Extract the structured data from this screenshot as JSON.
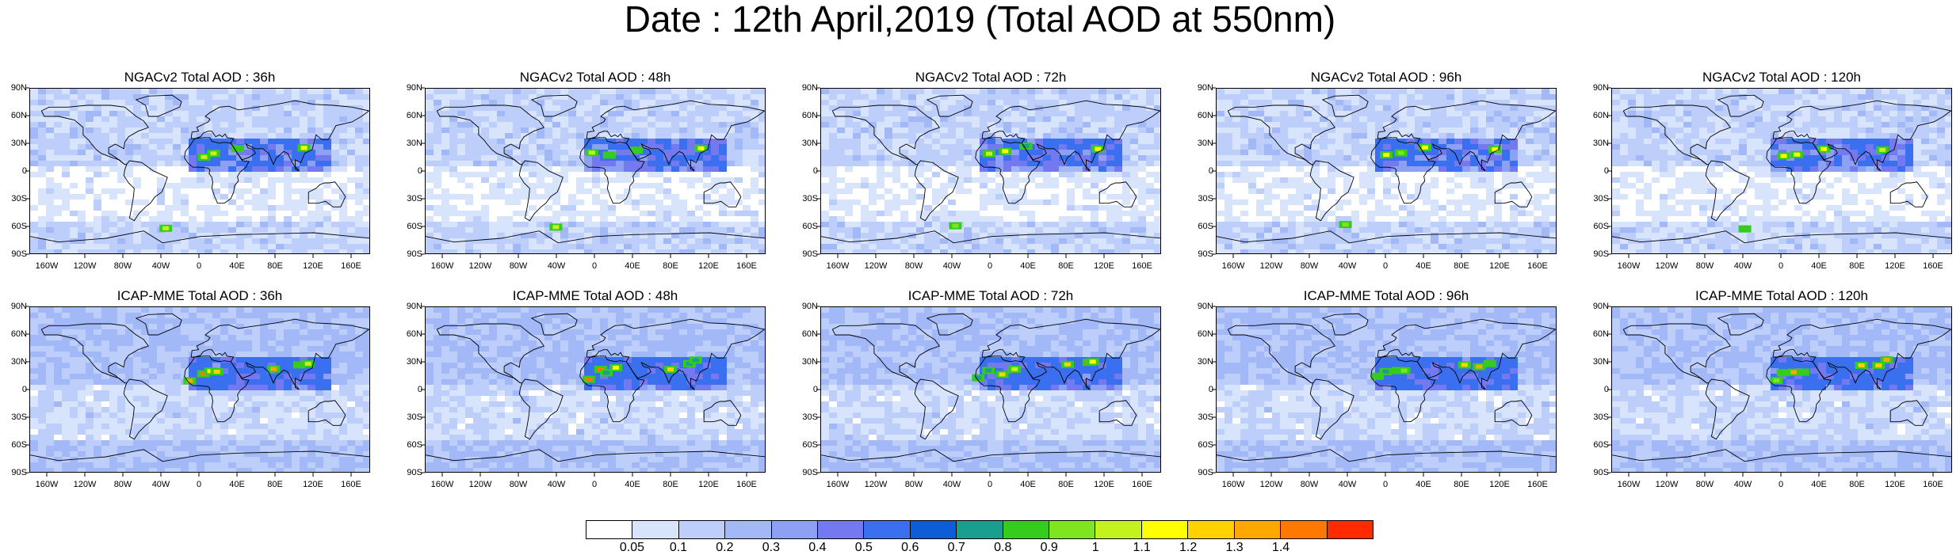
{
  "page": {
    "title": "Date : 12th April,2019 (Total AOD at 550nm)"
  },
  "panels": [
    {
      "title": "NGACv2 Total AOD : 36h",
      "model": "NGACv2",
      "lead_hours": 36
    },
    {
      "title": "NGACv2 Total AOD : 48h",
      "model": "NGACv2",
      "lead_hours": 48
    },
    {
      "title": "NGACv2 Total AOD : 72h",
      "model": "NGACv2",
      "lead_hours": 72
    },
    {
      "title": "NGACv2 Total AOD : 96h",
      "model": "NGACv2",
      "lead_hours": 96
    },
    {
      "title": "NGACv2 Total AOD : 120h",
      "model": "NGACv2",
      "lead_hours": 120
    },
    {
      "title": "ICAP-MME Total AOD : 36h",
      "model": "ICAP-MME",
      "lead_hours": 36
    },
    {
      "title": "ICAP-MME Total AOD : 48h",
      "model": "ICAP-MME",
      "lead_hours": 48
    },
    {
      "title": "ICAP-MME Total AOD : 72h",
      "model": "ICAP-MME",
      "lead_hours": 72
    },
    {
      "title": "ICAP-MME Total AOD : 96h",
      "model": "ICAP-MME",
      "lead_hours": 96
    },
    {
      "title": "ICAP-MME Total AOD : 120h",
      "model": "ICAP-MME",
      "lead_hours": 120
    }
  ],
  "axes": {
    "lat_labels": [
      "90N",
      "60N",
      "30N",
      "0",
      "30S",
      "60S",
      "90S"
    ],
    "lon_labels": [
      "160W",
      "120W",
      "80W",
      "40W",
      "0",
      "40E",
      "80E",
      "120E",
      "160E"
    ]
  },
  "colorbar": {
    "labels": [
      "0.05",
      "0.1",
      "0.2",
      "0.3",
      "0.4",
      "0.5",
      "0.6",
      "0.7",
      "0.8",
      "0.9",
      "1",
      "1.1",
      "1.2",
      "1.3",
      "1.4"
    ],
    "colors": [
      "#ffffff",
      "#d8e4fb",
      "#bccef9",
      "#a2b8f7",
      "#8ea0f3",
      "#7479ef",
      "#3a6ff0",
      "#0d5ed6",
      "#1a9e8f",
      "#36cc1e",
      "#7ee61e",
      "#c4f21c",
      "#ffff00",
      "#ffd200",
      "#ffa800",
      "#ff7800",
      "#ff2a00"
    ]
  }
}
